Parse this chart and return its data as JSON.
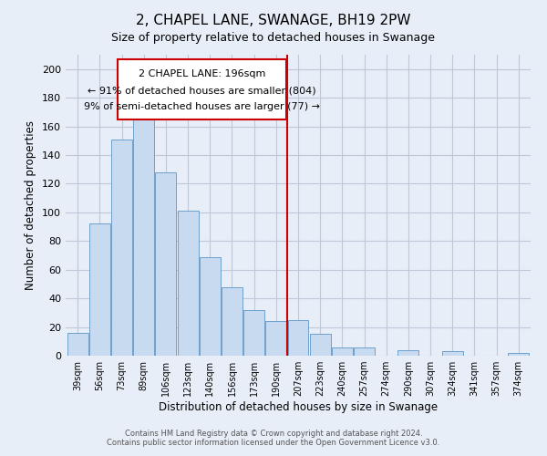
{
  "title": "2, CHAPEL LANE, SWANAGE, BH19 2PW",
  "subtitle": "Size of property relative to detached houses in Swanage",
  "xlabel": "Distribution of detached houses by size in Swanage",
  "ylabel": "Number of detached properties",
  "categories": [
    "39sqm",
    "56sqm",
    "73sqm",
    "89sqm",
    "106sqm",
    "123sqm",
    "140sqm",
    "156sqm",
    "173sqm",
    "190sqm",
    "207sqm",
    "223sqm",
    "240sqm",
    "257sqm",
    "274sqm",
    "290sqm",
    "307sqm",
    "324sqm",
    "341sqm",
    "357sqm",
    "374sqm"
  ],
  "values": [
    16,
    92,
    151,
    165,
    128,
    101,
    69,
    48,
    32,
    24,
    25,
    15,
    6,
    6,
    0,
    4,
    0,
    3,
    0,
    0,
    2
  ],
  "bar_color": "#c8daf0",
  "bar_edgecolor": "#6ea0cc",
  "vline_x": 9.5,
  "vline_color": "#cc0000",
  "annotation_title": "2 CHAPEL LANE: 196sqm",
  "annotation_line1": "← 91% of detached houses are smaller (804)",
  "annotation_line2": "9% of semi-detached houses are larger (77) →",
  "annotation_box_color": "#ffffff",
  "annotation_box_edgecolor": "#cc0000",
  "ylim": [
    0,
    210
  ],
  "yticks": [
    0,
    20,
    40,
    60,
    80,
    100,
    120,
    140,
    160,
    180,
    200
  ],
  "footer1": "Contains HM Land Registry data © Crown copyright and database right 2024.",
  "footer2": "Contains public sector information licensed under the Open Government Licence v3.0.",
  "background_color": "#e8eef8",
  "plot_bg_color": "#e8eef8",
  "grid_color": "#c0c8d8"
}
